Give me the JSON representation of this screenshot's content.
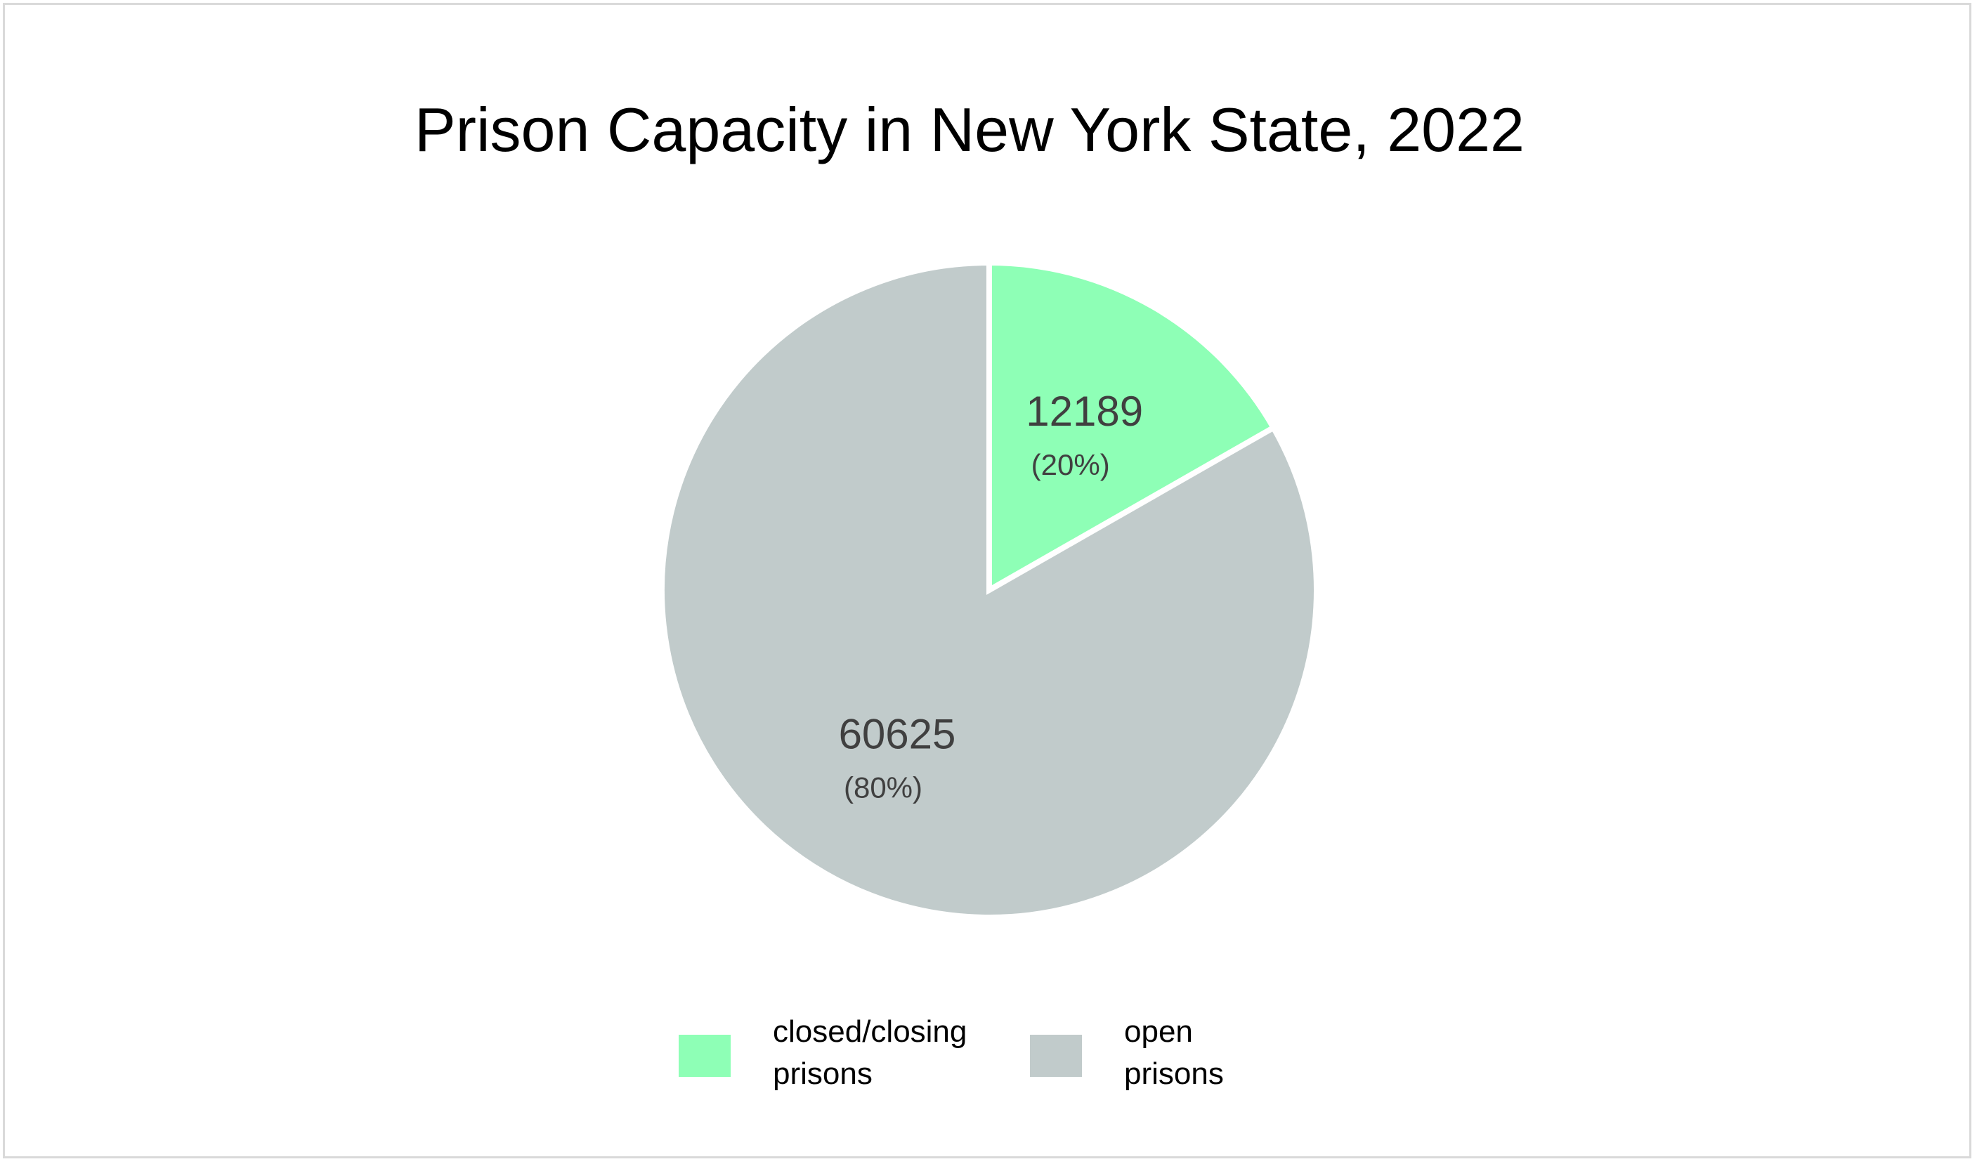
{
  "chart_data": {
    "type": "pie",
    "title": "Prison Capacity in New York State, 2022",
    "slices": [
      {
        "legend_lines": [
          "closed/closing",
          "prisons"
        ],
        "value": 12189,
        "value_label": "12189",
        "percent_label": "(20%)",
        "color": "#8effb6"
      },
      {
        "legend_lines": [
          "open",
          "prisons"
        ],
        "value": 60625,
        "value_label": "60625",
        "percent_label": "(80%)",
        "color": "#c1cbcb"
      }
    ],
    "start_angle_deg": 0,
    "direction": "clockwise",
    "separator_color": "#ffffff",
    "legend_position": "bottom"
  }
}
